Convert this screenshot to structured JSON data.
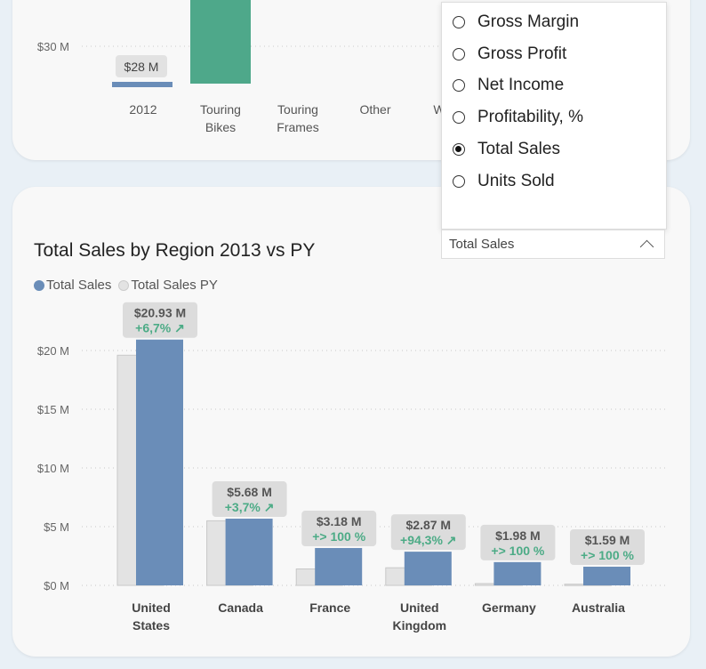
{
  "top_chart": {
    "ytick": "$30 M",
    "data_label": "$28 M",
    "categories": [
      "2012",
      "Touring\nBikes",
      "Touring\nFrames",
      "Other",
      "W"
    ]
  },
  "measure_picker": {
    "options": [
      {
        "label": "Gross Margin",
        "selected": false
      },
      {
        "label": "Gross Profit",
        "selected": false
      },
      {
        "label": "Net Income",
        "selected": false
      },
      {
        "label": "Profitability, %",
        "selected": false
      },
      {
        "label": "Total Sales",
        "selected": true
      },
      {
        "label": "Units Sold",
        "selected": false
      }
    ],
    "selected_value": "Total Sales",
    "icon": "chevron-up-icon"
  },
  "chart_data": {
    "type": "bar",
    "title": "Total Sales by Region 2013 vs PY",
    "legend": [
      {
        "name": "Total Sales",
        "color": "#6a8db8"
      },
      {
        "name": "Total Sales PY",
        "color": "#e3e3e3"
      }
    ],
    "categories": [
      "United States",
      "Canada",
      "France",
      "United Kingdom",
      "Germany",
      "Australia"
    ],
    "series": [
      {
        "name": "Total Sales",
        "values": [
          20.93,
          5.68,
          3.18,
          2.87,
          1.98,
          1.59
        ]
      },
      {
        "name": "Total Sales PY",
        "values": [
          19.6,
          5.5,
          1.4,
          1.5,
          0.15,
          0.1
        ]
      }
    ],
    "value_labels": [
      "$20.93 M",
      "$5.68 M",
      "$3.18 M",
      "$2.87 M",
      "$1.98 M",
      "$1.59 M"
    ],
    "change_labels": [
      "+6,7% ↗",
      "+3,7% ↗",
      "+> 100 %",
      "+94,3% ↗",
      "+> 100 %",
      "+> 100 %"
    ],
    "yticks": [
      0,
      5,
      10,
      15,
      20
    ],
    "ytick_labels": [
      "$0 M",
      "$5 M",
      "$10 M",
      "$15 M",
      "$20 M"
    ],
    "ylim": [
      0,
      20
    ],
    "grid": true,
    "legend_position": "top-left",
    "colors": {
      "current": "#6a8db8",
      "previous": "#e3e3e3",
      "change": "#4cab86"
    }
  }
}
